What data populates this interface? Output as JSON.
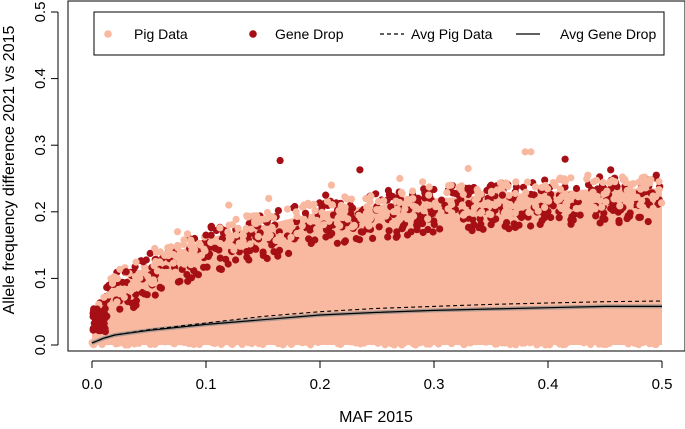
{
  "chart_data": {
    "type": "scatter",
    "xlabel": "MAF 2015",
    "ylabel": "Allele frequency difference 2021 vs 2015",
    "xlim": [
      0,
      0.5
    ],
    "ylim": [
      0,
      0.5
    ],
    "x_ticks": [
      "0.0",
      "0.1",
      "0.2",
      "0.3",
      "0.4",
      "0.5"
    ],
    "y_ticks": [
      "0.0",
      "0.1",
      "0.2",
      "0.3",
      "0.4",
      "0.5"
    ],
    "grid": false,
    "legend": {
      "placement": "top",
      "entries": [
        {
          "label": "Pig Data",
          "kind": "point",
          "color": "#f9b9a0"
        },
        {
          "label": "Gene Drop",
          "kind": "point",
          "color": "#a50f15"
        },
        {
          "label": "Avg Pig Data",
          "kind": "dashed-line",
          "color": "#000000"
        },
        {
          "label": "Avg Gene Drop",
          "kind": "solid-line",
          "color": "#000000"
        }
      ]
    },
    "series": [
      {
        "name": "Pig Data",
        "kind": "scatter-envelope",
        "color": "#f9b9a0",
        "upper_envelope": {
          "x": [
            0.0,
            0.02,
            0.05,
            0.1,
            0.15,
            0.2,
            0.25,
            0.3,
            0.35,
            0.4,
            0.45,
            0.5
          ],
          "y": [
            0.05,
            0.09,
            0.12,
            0.16,
            0.18,
            0.2,
            0.21,
            0.22,
            0.225,
            0.23,
            0.235,
            0.235
          ]
        },
        "outliers": [
          {
            "x": 0.38,
            "y": 0.29
          },
          {
            "x": 0.385,
            "y": 0.29
          },
          {
            "x": 0.33,
            "y": 0.265
          },
          {
            "x": 0.435,
            "y": 0.255
          },
          {
            "x": 0.29,
            "y": 0.245
          },
          {
            "x": 0.44,
            "y": 0.245
          },
          {
            "x": 0.27,
            "y": 0.25
          },
          {
            "x": 0.21,
            "y": 0.24
          },
          {
            "x": 0.055,
            "y": 0.145
          },
          {
            "x": 0.075,
            "y": 0.17
          },
          {
            "x": 0.12,
            "y": 0.21
          },
          {
            "x": 0.155,
            "y": 0.22
          }
        ]
      },
      {
        "name": "Gene Drop",
        "kind": "scatter-envelope",
        "color": "#a50f15",
        "upper_envelope": {
          "x": [
            0.0,
            0.02,
            0.05,
            0.1,
            0.15,
            0.2,
            0.25,
            0.3,
            0.35,
            0.4,
            0.45,
            0.5
          ],
          "y": [
            0.05,
            0.08,
            0.11,
            0.15,
            0.17,
            0.19,
            0.2,
            0.21,
            0.215,
            0.22,
            0.225,
            0.225
          ]
        },
        "outliers": [
          {
            "x": 0.165,
            "y": 0.277
          },
          {
            "x": 0.415,
            "y": 0.279
          },
          {
            "x": 0.455,
            "y": 0.263
          },
          {
            "x": 0.495,
            "y": 0.255
          },
          {
            "x": 0.205,
            "y": 0.225
          },
          {
            "x": 0.235,
            "y": 0.263
          },
          {
            "x": 0.26,
            "y": 0.232
          },
          {
            "x": 0.03,
            "y": 0.11
          },
          {
            "x": 0.045,
            "y": 0.125
          },
          {
            "x": 0.36,
            "y": 0.225
          },
          {
            "x": 0.1,
            "y": 0.165
          },
          {
            "x": 0.425,
            "y": 0.235
          }
        ]
      },
      {
        "name": "Avg Pig Data",
        "kind": "line",
        "style": "dashed",
        "color": "#000000",
        "x": [
          0.0,
          0.01,
          0.02,
          0.05,
          0.1,
          0.15,
          0.2,
          0.25,
          0.3,
          0.35,
          0.4,
          0.45,
          0.5
        ],
        "y": [
          0.003,
          0.01,
          0.015,
          0.023,
          0.033,
          0.043,
          0.05,
          0.055,
          0.058,
          0.061,
          0.063,
          0.065,
          0.066
        ]
      },
      {
        "name": "Avg Gene Drop",
        "kind": "line",
        "style": "solid",
        "color": "#000000",
        "x": [
          0.0,
          0.01,
          0.02,
          0.05,
          0.1,
          0.15,
          0.2,
          0.25,
          0.3,
          0.35,
          0.4,
          0.45,
          0.5
        ],
        "y": [
          0.003,
          0.01,
          0.015,
          0.022,
          0.031,
          0.038,
          0.045,
          0.049,
          0.052,
          0.054,
          0.056,
          0.058,
          0.058
        ]
      }
    ]
  }
}
